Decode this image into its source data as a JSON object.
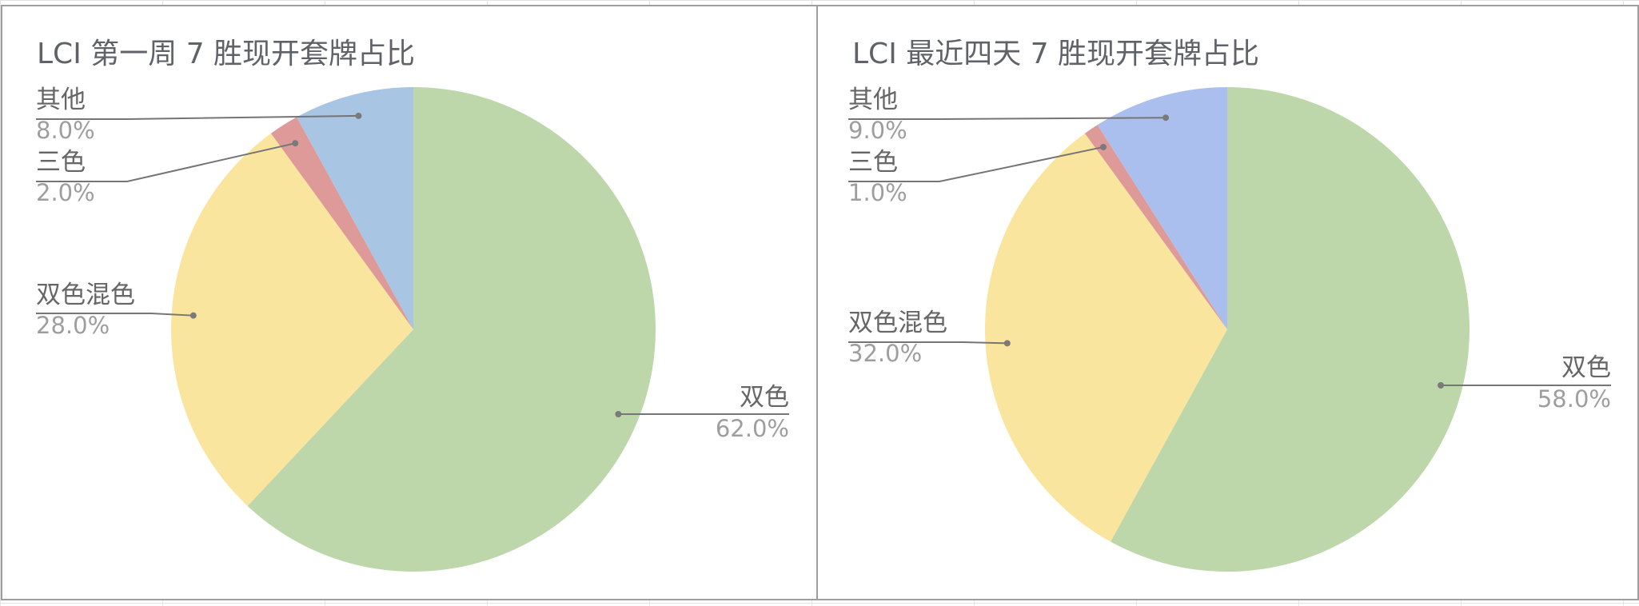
{
  "chart_data": [
    {
      "type": "pie",
      "title": "LCI 第一周 7 胜现开套牌占比",
      "slices": [
        {
          "label": "双色",
          "value": 62.0,
          "value_label": "62.0%",
          "color": "#bdd7ab"
        },
        {
          "label": "双色混色",
          "value": 28.0,
          "value_label": "28.0%",
          "color": "#fae59e"
        },
        {
          "label": "三色",
          "value": 2.0,
          "value_label": "2.0%",
          "color": "#de9a99"
        },
        {
          "label": "其他",
          "value": 8.0,
          "value_label": "8.0%",
          "color": "#a8c5e3"
        }
      ]
    },
    {
      "type": "pie",
      "title": "LCI 最近四天 7 胜现开套牌占比",
      "slices": [
        {
          "label": "双色",
          "value": 58.0,
          "value_label": "58.0%",
          "color": "#bdd7ab"
        },
        {
          "label": "双色混色",
          "value": 32.0,
          "value_label": "32.0%",
          "color": "#fae59e"
        },
        {
          "label": "三色",
          "value": 1.0,
          "value_label": "1.0%",
          "color": "#de9a99"
        },
        {
          "label": "其他",
          "value": 9.0,
          "value_label": "9.0%",
          "color": "#abbfee"
        }
      ]
    }
  ]
}
